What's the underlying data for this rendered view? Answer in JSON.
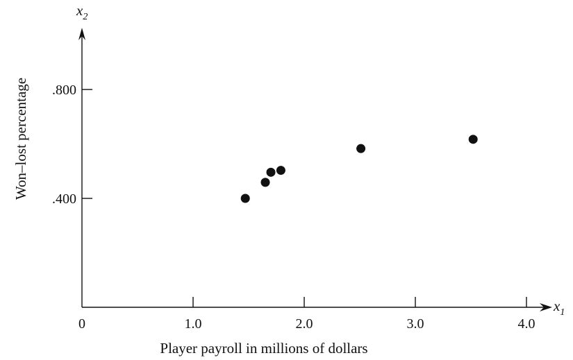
{
  "chart_data": {
    "type": "scatter",
    "xlabel": "Player payroll in millions of dollars",
    "ylabel": "Won–lost percentage",
    "x_axis_var": "x",
    "x_axis_sub": "1",
    "y_axis_var": "x",
    "y_axis_sub": "2",
    "xlim": [
      0,
      4.3
    ],
    "ylim": [
      0,
      1.0
    ],
    "x_ticks": [
      {
        "value": 0,
        "label": "0"
      },
      {
        "value": 1.0,
        "label": "1.0"
      },
      {
        "value": 2.0,
        "label": "2.0"
      },
      {
        "value": 3.0,
        "label": "3.0"
      },
      {
        "value": 4.0,
        "label": "4.0"
      }
    ],
    "y_ticks": [
      {
        "value": 0.4,
        "label": ".400"
      },
      {
        "value": 0.8,
        "label": ".800"
      }
    ],
    "points": [
      {
        "x": 1.47,
        "y": 0.4
      },
      {
        "x": 1.65,
        "y": 0.459
      },
      {
        "x": 1.7,
        "y": 0.496
      },
      {
        "x": 1.79,
        "y": 0.503
      },
      {
        "x": 2.51,
        "y": 0.583
      },
      {
        "x": 3.52,
        "y": 0.617
      }
    ],
    "grid": false,
    "legend": "none"
  }
}
